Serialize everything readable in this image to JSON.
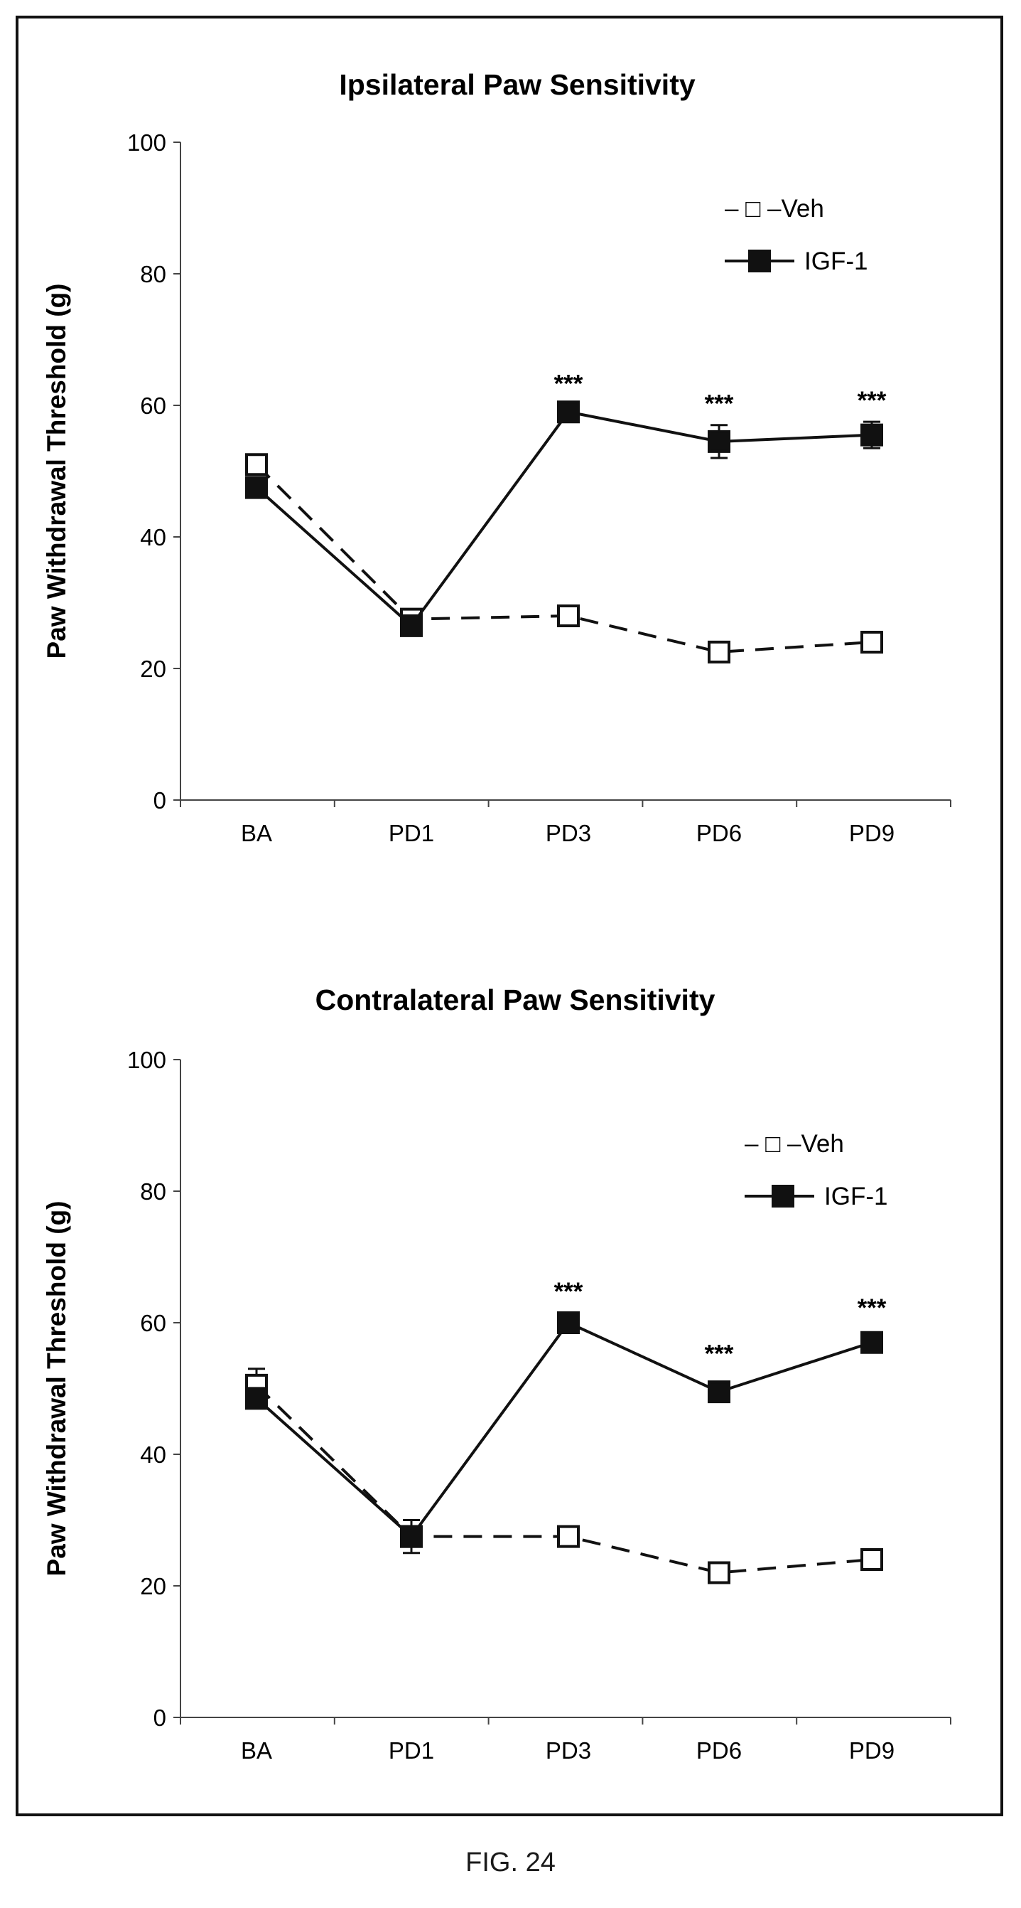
{
  "figure_caption": "FIG. 24",
  "chart_data": [
    {
      "type": "line",
      "title": "Ipsilateral Paw Sensitivity",
      "xlabel": "",
      "ylabel": "Paw Withdrawal  Threshold (g)",
      "categories": [
        "BA",
        "PD1",
        "PD3",
        "PD6",
        "PD9"
      ],
      "ylim": [
        0,
        100
      ],
      "yticks": [
        0,
        20,
        40,
        60,
        80,
        100
      ],
      "grid": false,
      "legend_position": "top-right",
      "series": [
        {
          "name": "Veh",
          "legend_text": "– □ –Veh",
          "style": "dashed-open-square",
          "values": [
            51,
            27.5,
            28,
            22.5,
            24
          ],
          "errors": [
            1,
            1,
            1,
            1,
            1
          ]
        },
        {
          "name": "IGF-1",
          "legend_text": "IGF-1",
          "style": "solid-filled-square",
          "values": [
            47.5,
            26.5,
            59,
            54.5,
            55.5
          ],
          "errors": [
            1,
            1,
            1,
            2.5,
            2
          ]
        }
      ],
      "annotations": [
        {
          "category": "PD3",
          "y": 63.5,
          "text": "***"
        },
        {
          "category": "PD6",
          "y": 60.5,
          "text": "***"
        },
        {
          "category": "PD9",
          "y": 61,
          "text": "***"
        }
      ]
    },
    {
      "type": "line",
      "title": "Contralateral Paw Sensitivity",
      "xlabel": "",
      "ylabel": "Paw Withdrawal  Threshold (g)",
      "categories": [
        "BA",
        "PD1",
        "PD3",
        "PD6",
        "PD9"
      ],
      "ylim": [
        0,
        100
      ],
      "yticks": [
        0,
        20,
        40,
        60,
        80,
        100
      ],
      "grid": false,
      "legend_position": "top-right",
      "series": [
        {
          "name": "Veh",
          "legend_text": "– □ –Veh",
          "style": "dashed-open-square",
          "values": [
            50.5,
            27.5,
            27.5,
            22,
            24
          ],
          "errors": [
            2.5,
            2.5,
            1,
            1,
            1
          ]
        },
        {
          "name": "IGF-1",
          "legend_text": "IGF-1",
          "style": "solid-filled-square",
          "values": [
            48.5,
            27.5,
            60,
            49.5,
            57
          ],
          "errors": [
            1.5,
            1.5,
            1,
            1,
            1.5
          ]
        }
      ],
      "annotations": [
        {
          "category": "PD3",
          "y": 65,
          "text": "***"
        },
        {
          "category": "PD6",
          "y": 55.5,
          "text": "***"
        },
        {
          "category": "PD9",
          "y": 62.5,
          "text": "***"
        }
      ]
    }
  ]
}
